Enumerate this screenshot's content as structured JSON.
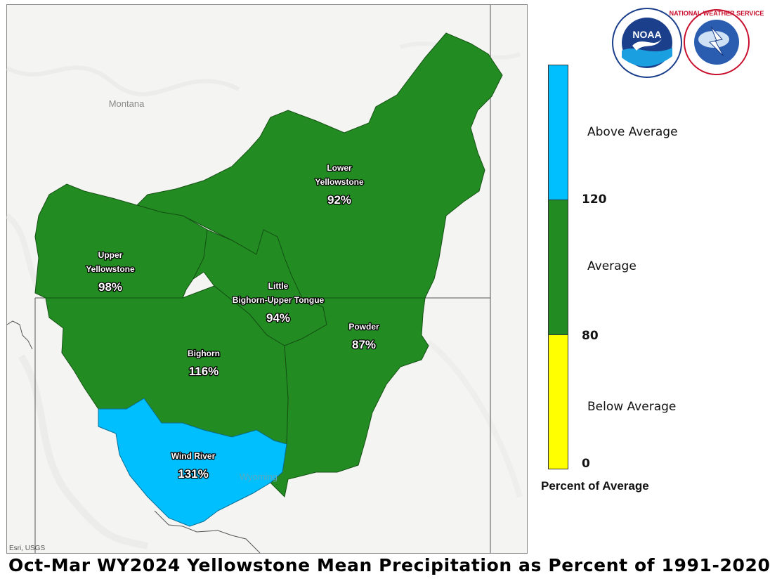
{
  "map": {
    "states": [
      "Montana",
      "Wyoming"
    ],
    "attribution": "Esri, USGS",
    "basins": [
      {
        "id": "lower-yellowstone",
        "name_lines": [
          "Lower",
          "Yellowstone"
        ],
        "percent": "92%",
        "category": "Average"
      },
      {
        "id": "upper-yellowstone",
        "name_lines": [
          "Upper",
          "Yellowstone"
        ],
        "percent": "98%",
        "category": "Average"
      },
      {
        "id": "little-bighorn-upper-tongue",
        "name_lines": [
          "Little",
          "Bighorn-Upper Tongue"
        ],
        "percent": "94%",
        "category": "Average"
      },
      {
        "id": "powder",
        "name_lines": [
          "Powder"
        ],
        "percent": "87%",
        "category": "Average"
      },
      {
        "id": "bighorn",
        "name_lines": [
          "Bighorn"
        ],
        "percent": "116%",
        "category": "Average"
      },
      {
        "id": "wind-river",
        "name_lines": [
          "Wind River"
        ],
        "percent": "131%",
        "category": "Above Average"
      }
    ]
  },
  "legend": {
    "title": "Percent of Average",
    "categories": [
      {
        "label": "Above Average",
        "color": "#00bfff"
      },
      {
        "label": "Average",
        "color": "#228b22"
      },
      {
        "label": "Below Average",
        "color": "#ffff00"
      }
    ],
    "ticks": [
      "120",
      "80",
      "0"
    ]
  },
  "logos": {
    "noaa_text": "NOAA",
    "nws_text": "NATIONAL WEATHER SERVICE"
  },
  "title": "Oct-Mar WY2024 Yellowstone Mean Precipitation as Percent of 1991-2020"
}
